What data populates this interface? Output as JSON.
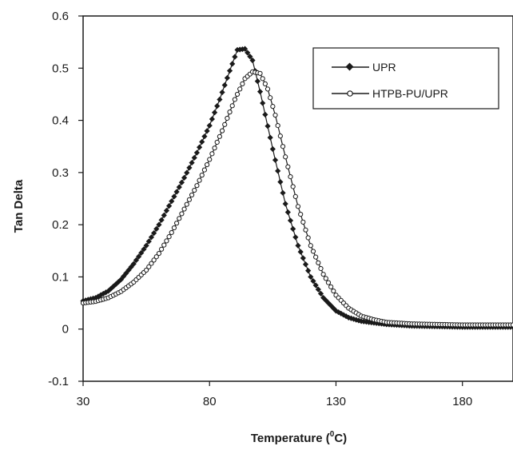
{
  "chart_data": {
    "type": "line",
    "title": "",
    "xlabel_main": "Temperature (",
    "xlabel_sup": "0",
    "xlabel_end": "C)",
    "ylabel": "Tan Delta",
    "xlim": [
      30,
      200
    ],
    "ylim": [
      -0.1,
      0.6
    ],
    "xticks": [
      30,
      80,
      130,
      180
    ],
    "yticks": [
      -0.1,
      0,
      0.1,
      0.2,
      0.3,
      0.4,
      0.5,
      0.6
    ],
    "ytick_labels": [
      "-0.1",
      "0",
      "0.1",
      "0.2",
      "0.3",
      "0.4",
      "0.5",
      "0.6"
    ],
    "grid": false,
    "legend_position": "top-right",
    "series": [
      {
        "name": "UPR",
        "marker": "diamond-filled",
        "color": "#1a1a1a",
        "x": [
          30,
          35,
          40,
          45,
          50,
          55,
          60,
          65,
          70,
          75,
          80,
          84,
          88,
          91,
          94,
          97,
          100,
          105,
          110,
          115,
          120,
          125,
          130,
          135,
          140,
          150,
          160,
          170,
          180,
          190,
          200
        ],
        "y": [
          0.054,
          0.06,
          0.073,
          0.095,
          0.125,
          0.16,
          0.2,
          0.245,
          0.29,
          0.338,
          0.39,
          0.44,
          0.495,
          0.535,
          0.537,
          0.515,
          0.455,
          0.345,
          0.24,
          0.16,
          0.1,
          0.06,
          0.035,
          0.022,
          0.015,
          0.009,
          0.006,
          0.005,
          0.004,
          0.004,
          0.004
        ]
      },
      {
        "name": "HTPB-PU/UPR",
        "marker": "circle-open",
        "color": "#1a1a1a",
        "x": [
          30,
          35,
          40,
          45,
          50,
          55,
          60,
          65,
          70,
          75,
          80,
          85,
          90,
          94,
          97,
          100,
          103,
          106,
          110,
          115,
          120,
          125,
          130,
          135,
          140,
          145,
          150,
          160,
          170,
          180,
          190,
          200
        ],
        "y": [
          0.05,
          0.053,
          0.06,
          0.072,
          0.09,
          0.113,
          0.145,
          0.185,
          0.23,
          0.275,
          0.325,
          0.38,
          0.44,
          0.48,
          0.493,
          0.49,
          0.46,
          0.41,
          0.33,
          0.235,
          0.16,
          0.105,
          0.065,
          0.04,
          0.025,
          0.018,
          0.013,
          0.01,
          0.009,
          0.008,
          0.008,
          0.008
        ]
      }
    ]
  }
}
